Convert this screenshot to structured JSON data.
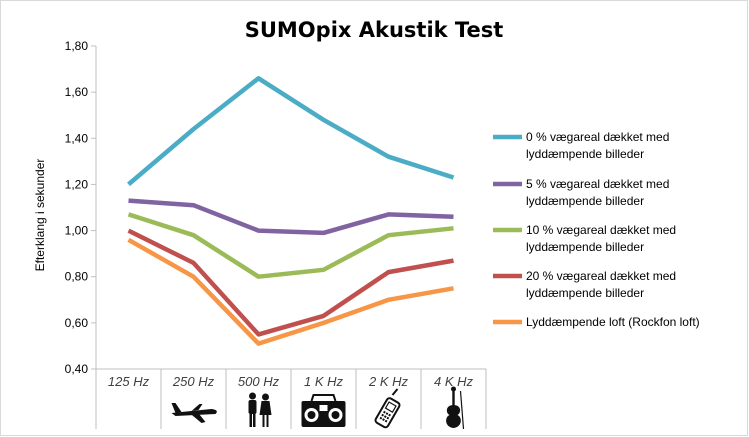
{
  "chart_data": {
    "type": "line",
    "title": "SUMOpix Akustik Test",
    "ylabel": "Efterklang i sekunder",
    "xlabel": "",
    "categories": [
      "125 Hz",
      "250 Hz",
      "500 Hz",
      "1 K Hz",
      "2 K Hz",
      "4 K Hz"
    ],
    "category_icons": [
      "",
      "airplane-icon",
      "couple-icon",
      "boombox-icon",
      "mobile-phone-icon",
      "violin-icon"
    ],
    "ylim": [
      0.4,
      1.8
    ],
    "yticks": [
      "0,40",
      "0,60",
      "0,80",
      "1,00",
      "1,20",
      "1,40",
      "1,60",
      "1,80"
    ],
    "grid": false,
    "legend_position": "right",
    "series": [
      {
        "name": "0 % vægareal dækket med lyddæmpende billeder",
        "color": "#4bacc6",
        "values": [
          1.2,
          1.44,
          1.66,
          1.48,
          1.32,
          1.23
        ]
      },
      {
        "name": "5 % vægareal dækket med lyddæmpende billeder",
        "color": "#8064a2",
        "values": [
          1.13,
          1.11,
          1.0,
          0.99,
          1.07,
          1.06
        ]
      },
      {
        "name": "10 % vægareal dækket med lyddæmpende billeder",
        "color": "#9bbb59",
        "values": [
          1.07,
          0.98,
          0.8,
          0.83,
          0.98,
          1.01
        ]
      },
      {
        "name": "20 % vægareal dækket med lyddæmpende billeder",
        "color": "#c0504d",
        "values": [
          1.0,
          0.86,
          0.55,
          0.63,
          0.82,
          0.87
        ]
      },
      {
        "name": "Lyddæmpende loft (Rockfon loft)",
        "color": "#f79646",
        "values": [
          0.96,
          0.8,
          0.51,
          0.6,
          0.7,
          0.75
        ]
      }
    ]
  }
}
